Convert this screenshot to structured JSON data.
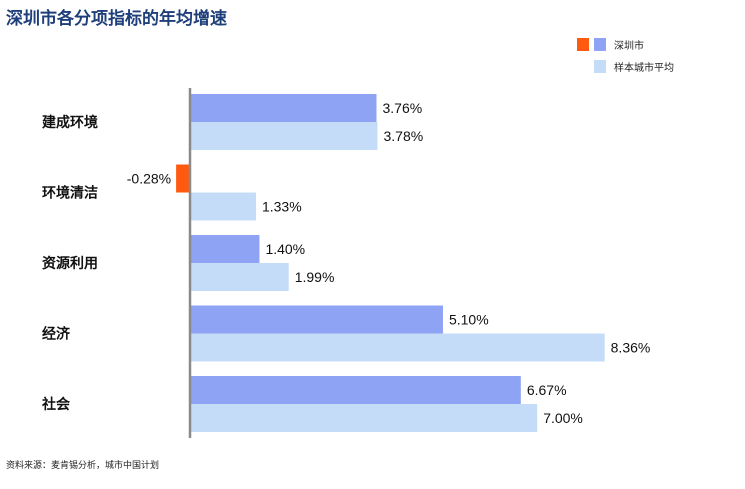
{
  "chart_data": {
    "type": "bar",
    "orientation": "horizontal",
    "title": "深圳市各分项指标的年均增速",
    "categories": [
      "建成环境",
      "环境清洁",
      "资源利用",
      "经济",
      "社会"
    ],
    "series": [
      {
        "name": "深圳市",
        "values": [
          3.76,
          -0.28,
          1.4,
          5.1,
          6.67
        ],
        "labels": [
          "3.76%",
          "-0.28%",
          "1.40%",
          "5.10%",
          "6.67%"
        ],
        "color": "#8fa3f5",
        "negative_color": "#ff5a0f"
      },
      {
        "name": "样本城市平均",
        "values": [
          3.78,
          1.33,
          1.99,
          8.36,
          7.0
        ],
        "labels": [
          "3.78%",
          "1.33%",
          "1.99%",
          "8.36%",
          "7.00%"
        ],
        "color": "#c5dcf8"
      }
    ],
    "legend_position": "top-right",
    "grid": false
  },
  "source": "资料来源：麦肯锡分析，城市中国计划"
}
